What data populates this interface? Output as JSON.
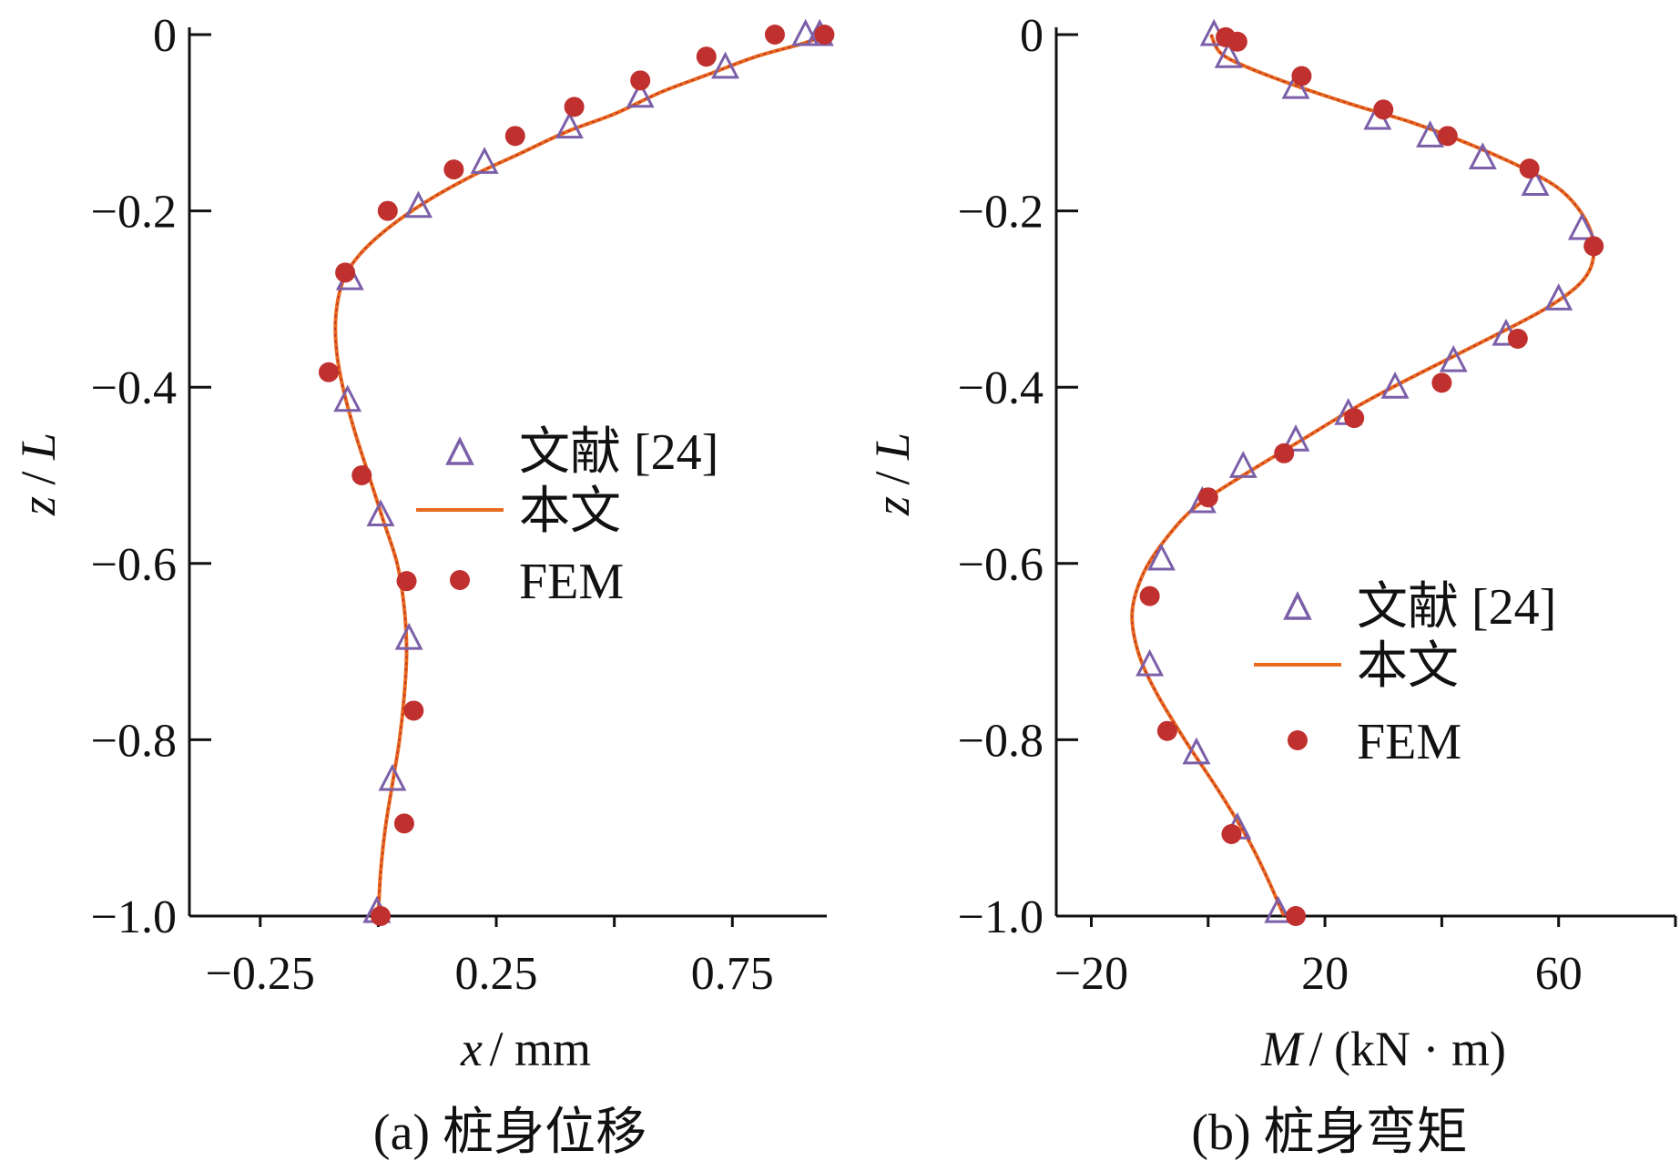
{
  "colors": {
    "triangle": "#7b5fa8",
    "line": "#e86a1e",
    "dot": "#c0302e",
    "axis": "#111111"
  },
  "chart_data": [
    {
      "id": "a",
      "type": "line",
      "caption": "(a)  桩身位移",
      "xlabel_var": "x",
      "xlabel_unit": "mm",
      "ylabel_var": "z",
      "ylabel_unit": "L",
      "xlim": [
        -0.4,
        0.95
      ],
      "ylim": [
        -1.0,
        0
      ],
      "xticks": [
        -0.25,
        0.25,
        0.75
      ],
      "xtick_labels": [
        "−0.25",
        "0.25",
        "0.75"
      ],
      "yticks": [
        0,
        -0.2,
        -0.4,
        -0.6,
        -0.8,
        -1.0
      ],
      "ytick_labels": [
        "0",
        "−0.2",
        "−0.4",
        "−0.6",
        "−0.8",
        "−1.0"
      ],
      "legend": {
        "placement": "center-right",
        "labels": [
          "文献 [24]",
          "本文",
          "FEM"
        ]
      },
      "series": [
        {
          "name": "文献 [24]",
          "marker": "triangle",
          "points": [
            [
              0.935,
              0
            ],
            [
              0.905,
              0
            ],
            [
              0.735,
              -0.037
            ],
            [
              0.555,
              -0.07
            ],
            [
              0.405,
              -0.105
            ],
            [
              0.225,
              -0.145
            ],
            [
              0.085,
              -0.195
            ],
            [
              -0.06,
              -0.277
            ],
            [
              -0.065,
              -0.415
            ],
            [
              0.005,
              -0.545
            ],
            [
              0.065,
              -0.685
            ],
            [
              0.03,
              -0.845
            ],
            [
              -0.003,
              -0.995
            ]
          ]
        },
        {
          "name": "本文",
          "marker": "line",
          "points": [
            [
              0.95,
              0
            ],
            [
              0.9,
              -0.01
            ],
            [
              0.8,
              -0.025
            ],
            [
              0.7,
              -0.045
            ],
            [
              0.6,
              -0.065
            ],
            [
              0.5,
              -0.09
            ],
            [
              0.4,
              -0.11
            ],
            [
              0.3,
              -0.135
            ],
            [
              0.2,
              -0.16
            ],
            [
              0.1,
              -0.19
            ],
            [
              0.02,
              -0.22
            ],
            [
              -0.04,
              -0.25
            ],
            [
              -0.075,
              -0.28
            ],
            [
              -0.09,
              -0.32
            ],
            [
              -0.088,
              -0.36
            ],
            [
              -0.075,
              -0.4
            ],
            [
              -0.05,
              -0.45
            ],
            [
              -0.02,
              -0.5
            ],
            [
              0.01,
              -0.55
            ],
            [
              0.04,
              -0.6
            ],
            [
              0.055,
              -0.65
            ],
            [
              0.06,
              -0.7
            ],
            [
              0.055,
              -0.75
            ],
            [
              0.045,
              -0.8
            ],
            [
              0.03,
              -0.85
            ],
            [
              0.015,
              -0.9
            ],
            [
              0.005,
              -0.95
            ],
            [
              0.0,
              -1.0
            ]
          ]
        },
        {
          "name": "FEM",
          "marker": "dot",
          "points": [
            [
              0.945,
              0
            ],
            [
              0.84,
              0
            ],
            [
              0.695,
              -0.025
            ],
            [
              0.555,
              -0.052
            ],
            [
              0.415,
              -0.082
            ],
            [
              0.29,
              -0.115
            ],
            [
              0.16,
              -0.153
            ],
            [
              0.02,
              -0.2
            ],
            [
              -0.07,
              -0.27
            ],
            [
              -0.105,
              -0.383
            ],
            [
              -0.035,
              -0.5
            ],
            [
              0.06,
              -0.62
            ],
            [
              0.075,
              -0.767
            ],
            [
              0.055,
              -0.895
            ],
            [
              0.005,
              -1.0
            ]
          ]
        }
      ]
    },
    {
      "id": "b",
      "type": "line",
      "caption": "(b)  桩身弯矩",
      "xlabel_var": "M",
      "xlabel_unit": "(kN · m)",
      "ylabel_var": "z",
      "ylabel_unit": "L",
      "xlim": [
        -26,
        80
      ],
      "ylim": [
        -1.0,
        0
      ],
      "xticks": [
        -20,
        20,
        60
      ],
      "xtick_labels": [
        "−20",
        "20",
        "60"
      ],
      "yticks": [
        0,
        -0.2,
        -0.4,
        -0.6,
        -0.8,
        -1.0
      ],
      "ytick_labels": [
        "0",
        "−0.2",
        "−0.4",
        "−0.6",
        "−0.8",
        "−1.0"
      ],
      "legend": {
        "placement": "lower-right",
        "labels": [
          "文献 [24]",
          "本文",
          "FEM"
        ]
      },
      "series": [
        {
          "name": "文献 [24]",
          "marker": "triangle",
          "points": [
            [
              1,
              0
            ],
            [
              3.5,
              -0.025
            ],
            [
              15,
              -0.06
            ],
            [
              29,
              -0.095
            ],
            [
              38,
              -0.115
            ],
            [
              47,
              -0.14
            ],
            [
              56,
              -0.17
            ],
            [
              64,
              -0.22
            ],
            [
              60,
              -0.3
            ],
            [
              51,
              -0.34
            ],
            [
              42,
              -0.37
            ],
            [
              32,
              -0.4
            ],
            [
              24,
              -0.43
            ],
            [
              15,
              -0.46
            ],
            [
              6,
              -0.49
            ],
            [
              -1,
              -0.53
            ],
            [
              -8,
              -0.595
            ],
            [
              -10,
              -0.715
            ],
            [
              -2,
              -0.815
            ],
            [
              5,
              -0.9
            ],
            [
              12,
              -0.995
            ]
          ]
        },
        {
          "name": "本文",
          "marker": "line",
          "points": [
            [
              0.5,
              0
            ],
            [
              2,
              -0.02
            ],
            [
              6,
              -0.035
            ],
            [
              15,
              -0.058
            ],
            [
              25,
              -0.08
            ],
            [
              35,
              -0.1
            ],
            [
              45,
              -0.125
            ],
            [
              55,
              -0.155
            ],
            [
              61,
              -0.18
            ],
            [
              65,
              -0.215
            ],
            [
              66,
              -0.25
            ],
            [
              64,
              -0.28
            ],
            [
              58,
              -0.31
            ],
            [
              48,
              -0.345
            ],
            [
              36,
              -0.385
            ],
            [
              26,
              -0.42
            ],
            [
              16,
              -0.46
            ],
            [
              6,
              -0.5
            ],
            [
              -2,
              -0.535
            ],
            [
              -7,
              -0.57
            ],
            [
              -11,
              -0.61
            ],
            [
              -13,
              -0.655
            ],
            [
              -12,
              -0.7
            ],
            [
              -9,
              -0.745
            ],
            [
              -4,
              -0.8
            ],
            [
              2,
              -0.86
            ],
            [
              7,
              -0.915
            ],
            [
              10,
              -0.955
            ],
            [
              12,
              -0.985
            ],
            [
              13,
              -1.0
            ]
          ]
        },
        {
          "name": "FEM",
          "marker": "dot",
          "points": [
            [
              3,
              -0.003
            ],
            [
              5,
              -0.008
            ],
            [
              16,
              -0.047
            ],
            [
              30,
              -0.085
            ],
            [
              41,
              -0.115
            ],
            [
              55,
              -0.152
            ],
            [
              66,
              -0.24
            ],
            [
              53,
              -0.345
            ],
            [
              40,
              -0.395
            ],
            [
              25,
              -0.435
            ],
            [
              13,
              -0.475
            ],
            [
              0,
              -0.525
            ],
            [
              -10,
              -0.637
            ],
            [
              -7,
              -0.79
            ],
            [
              4,
              -0.907
            ],
            [
              15,
              -1.0
            ]
          ]
        }
      ]
    }
  ]
}
